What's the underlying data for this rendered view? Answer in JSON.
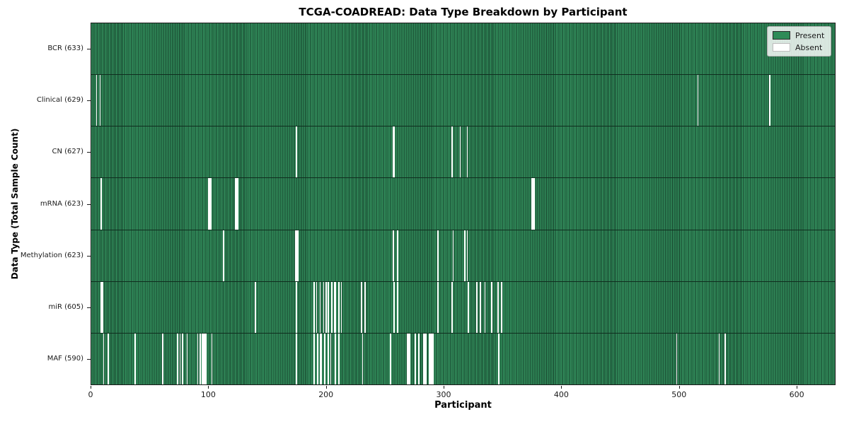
{
  "chart_data": {
    "type": "heatmap",
    "title": "TCGA-COADREAD: Data Type Breakdown by Participant",
    "xlabel": "Participant",
    "ylabel": "Data Type (Total Sample Count)",
    "x_ticks": [
      0,
      100,
      200,
      300,
      400,
      500,
      600
    ],
    "xlim": [
      0,
      633
    ],
    "total_participants": 633,
    "grid": false,
    "present_color": "#2e8b57",
    "absent_color": "#ffffff",
    "legend": {
      "position": "upper right",
      "items": [
        {
          "label": "Present",
          "color": "#2e8b57"
        },
        {
          "label": "Absent",
          "color": "#ffffff"
        }
      ]
    },
    "rows": [
      {
        "name": "bcr",
        "label": "BCR (633)",
        "count": 633,
        "absent": []
      },
      {
        "name": "clinical",
        "label": "Clinical (629)",
        "count": 629,
        "absent": [
          4,
          7,
          515,
          576
        ]
      },
      {
        "name": "cn",
        "label": "CN (627)",
        "count": 627,
        "absent": [
          174,
          256,
          257,
          306,
          313,
          319
        ]
      },
      {
        "name": "mrna",
        "label": "mRNA (623)",
        "count": 623,
        "absent": [
          8,
          99,
          100,
          101,
          122,
          123,
          124,
          374,
          375,
          376
        ]
      },
      {
        "name": "methylation",
        "label": "Methylation (623)",
        "count": 623,
        "absent": [
          112,
          173,
          174,
          175,
          256,
          260,
          294,
          307,
          317,
          319
        ]
      },
      {
        "name": "mir",
        "label": "miR (605)",
        "count": 605,
        "absent": [
          8,
          9,
          139,
          174,
          189,
          191,
          194,
          197,
          199,
          201,
          204,
          206,
          207,
          210,
          212,
          229,
          232,
          257,
          260,
          294,
          306,
          320,
          327,
          330,
          334,
          340,
          345,
          348
        ]
      },
      {
        "name": "maf",
        "label": "MAF (590)",
        "count": 590,
        "absent": [
          10,
          14,
          37,
          60,
          73,
          75,
          77,
          81,
          90,
          92,
          94,
          95,
          96,
          97,
          102,
          174,
          189,
          192,
          194,
          195,
          198,
          201,
          203,
          207,
          210,
          230,
          254,
          268,
          269,
          270,
          275,
          278,
          282,
          283,
          284,
          287,
          288,
          289,
          290,
          346,
          497,
          533,
          538
        ]
      }
    ]
  }
}
